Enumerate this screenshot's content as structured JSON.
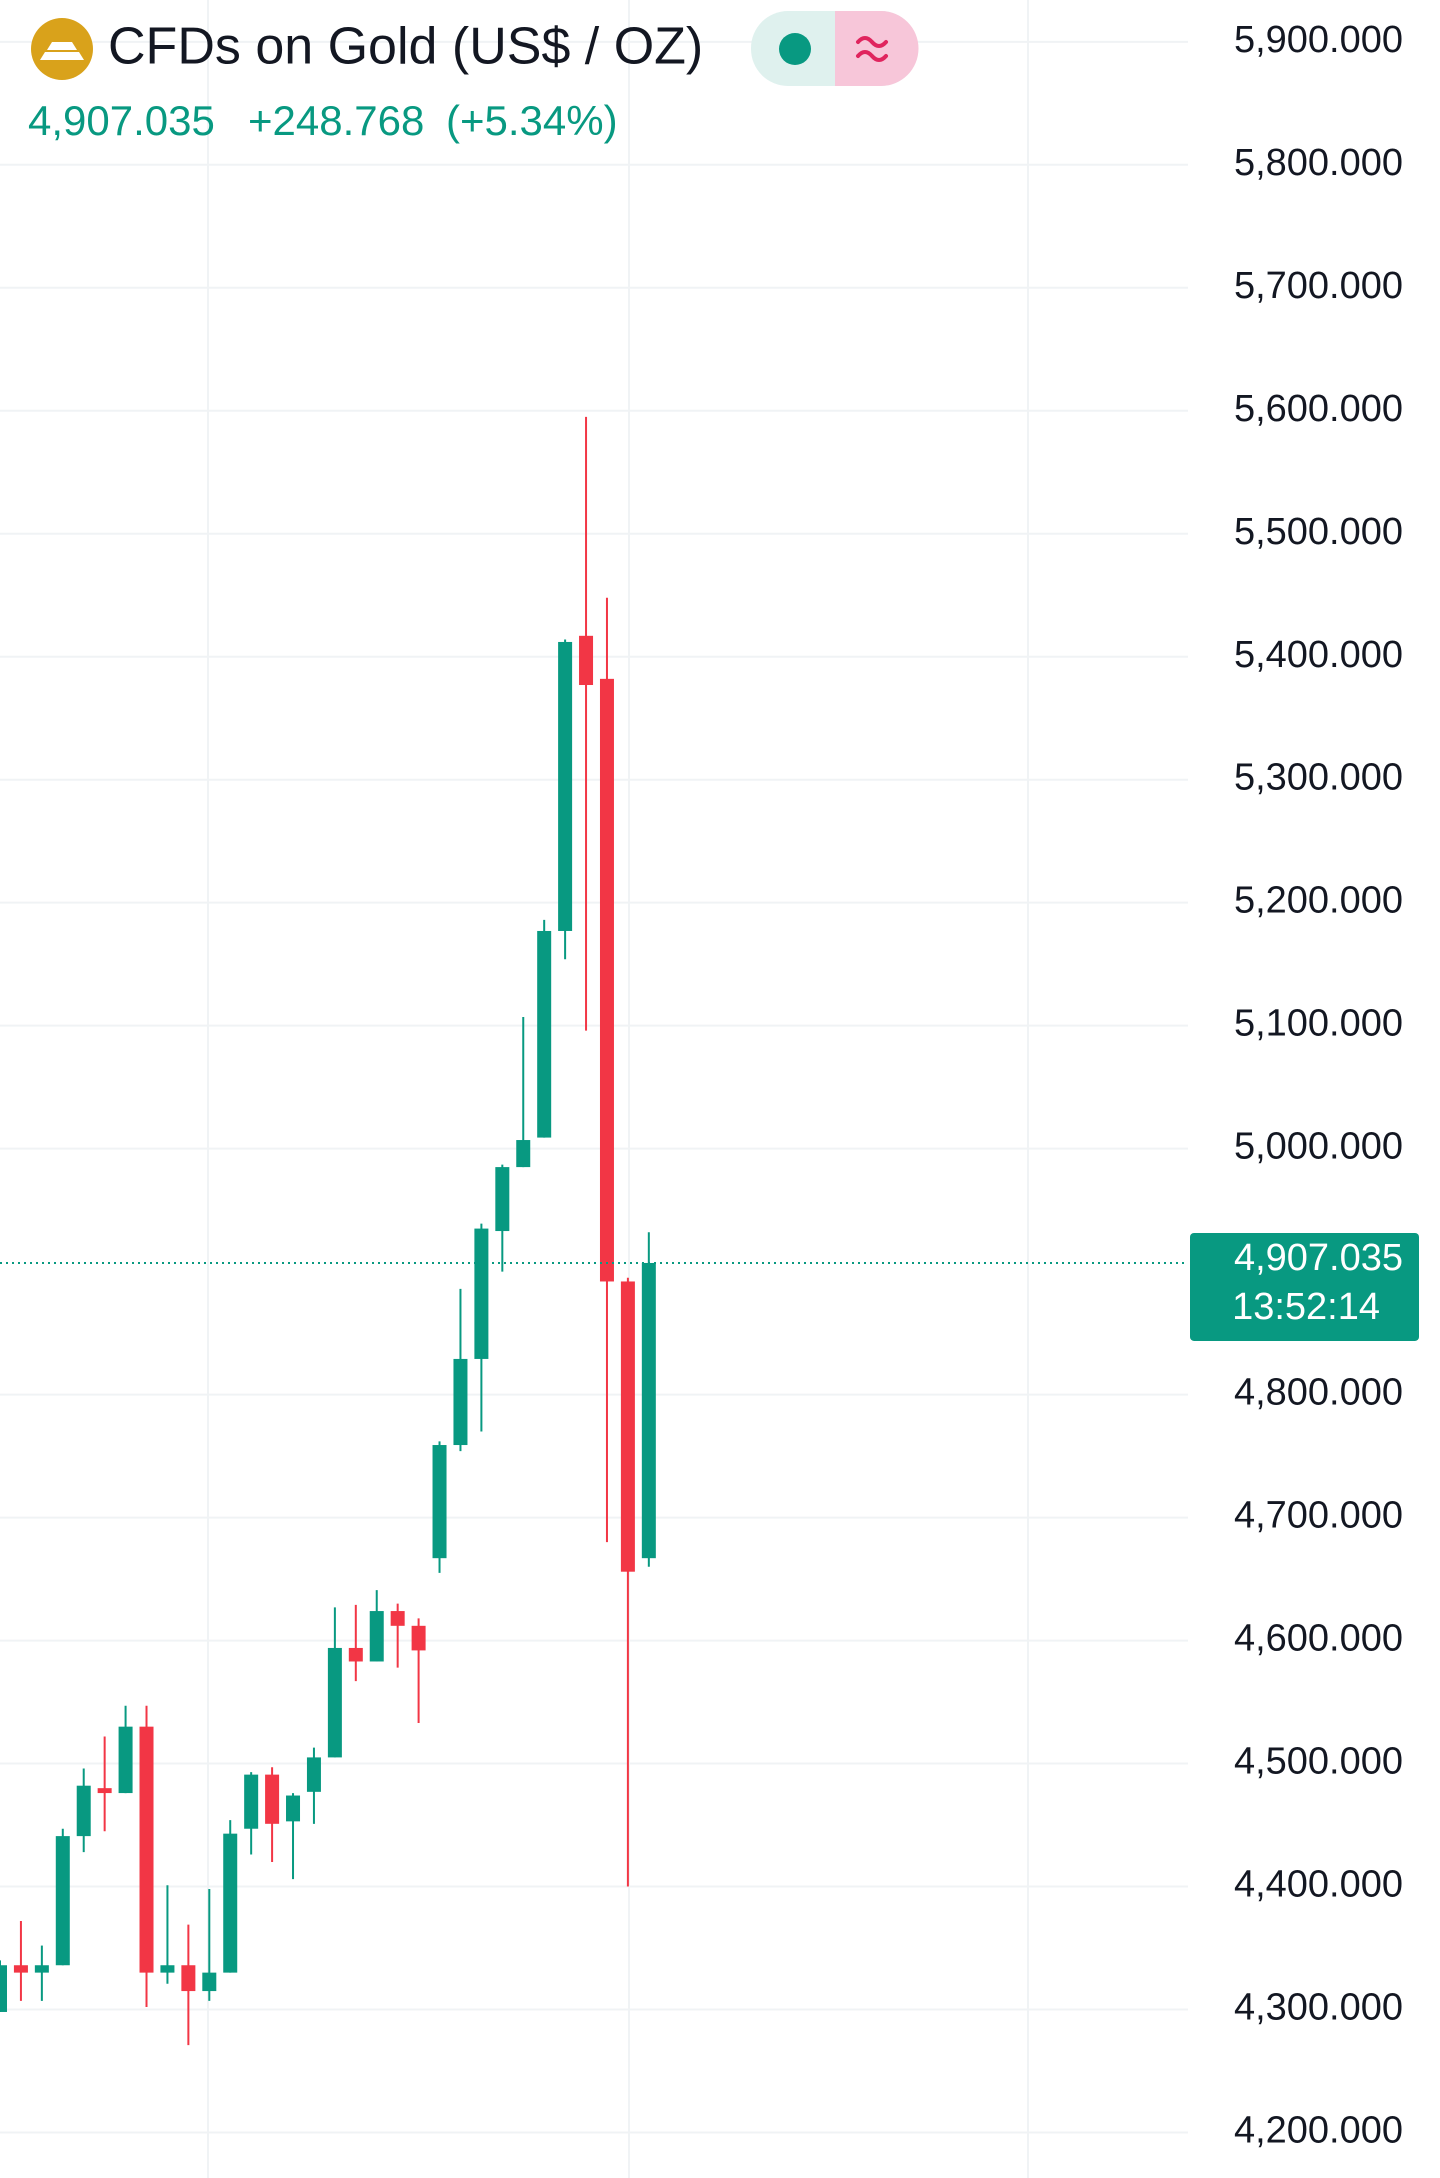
{
  "chart_data": {
    "type": "candlestick",
    "title": "CFDs on Gold (US$ / OZ)",
    "last_price": {
      "value": 4907.035,
      "label": "4,907.035"
    },
    "change": {
      "value": 248.768,
      "label": "+248.768"
    },
    "change_pct": {
      "value": 5.34,
      "label": "(+5.34%)"
    },
    "countdown": "13:52:14",
    "up_color": "#089981",
    "down_color": "#f23645",
    "grid": true,
    "categories": [
      null,
      null,
      null,
      null,
      null,
      null,
      null,
      null,
      null,
      null,
      null,
      null,
      null,
      null,
      null,
      null,
      null,
      null,
      null,
      null,
      null,
      null,
      null,
      null,
      null,
      null,
      null,
      null,
      null,
      null,
      null,
      null
    ],
    "open": [
      4298,
      4336,
      4330,
      4336,
      4441,
      4480,
      4476,
      4530,
      4330,
      4336,
      4315,
      4330,
      4447,
      4491,
      4453,
      4477,
      4505,
      4594,
      4583,
      4624,
      4612,
      4667,
      4759,
      4829,
      4933,
      4985,
      5009,
      5177,
      5417,
      5382,
      4892,
      4667
    ],
    "high": [
      4340,
      4372,
      4352,
      4447,
      4496,
      4522,
      4547,
      4547,
      4401,
      4369,
      4398,
      4454,
      4493,
      4497,
      4476,
      4513,
      4627,
      4629,
      4641,
      4630,
      4618,
      4762,
      4886,
      4939,
      4987,
      5107,
      5186,
      5414,
      5595,
      5448,
      4895,
      4932
    ],
    "low": [
      4298,
      4307,
      4307,
      4336,
      4428,
      4445,
      4476,
      4302,
      4321,
      4271,
      4307,
      4330,
      4426,
      4420,
      4406,
      4451,
      4505,
      4567,
      4583,
      4578,
      4533,
      4655,
      4754,
      4770,
      4900,
      4985,
      5009,
      5154,
      5096,
      4680,
      4400,
      4660
    ],
    "close": [
      4336,
      4330,
      4336,
      4441,
      4482,
      4476,
      4530,
      4330,
      4336,
      4315,
      4330,
      4443,
      4491,
      4451,
      4474,
      4505,
      4594,
      4583,
      4624,
      4612,
      4592,
      4759,
      4829,
      4935,
      4985,
      5007,
      5177,
      5412,
      5377,
      4892,
      4656,
      4907.035
    ],
    "ylim": [
      4163,
      5934
    ],
    "yticks": [
      {
        "value": 4200,
        "label": "4,200.000"
      },
      {
        "value": 4300,
        "label": "4,300.000"
      },
      {
        "value": 4400,
        "label": "4,400.000"
      },
      {
        "value": 4500,
        "label": "4,500.000"
      },
      {
        "value": 4600,
        "label": "4,600.000"
      },
      {
        "value": 4700,
        "label": "4,700.000"
      },
      {
        "value": 4800,
        "label": "4,800.000"
      },
      {
        "value": 5000,
        "label": "5,000.000"
      },
      {
        "value": 5100,
        "label": "5,100.000"
      },
      {
        "value": 5200,
        "label": "5,200.000"
      },
      {
        "value": 5300,
        "label": "5,300.000"
      },
      {
        "value": 5400,
        "label": "5,400.000"
      },
      {
        "value": 5500,
        "label": "5,500.000"
      },
      {
        "value": 5600,
        "label": "5,600.000"
      },
      {
        "value": 5700,
        "label": "5,700.000"
      },
      {
        "value": 5800,
        "label": "5,800.000"
      },
      {
        "value": 5900,
        "label": "5,900.000"
      }
    ]
  }
}
